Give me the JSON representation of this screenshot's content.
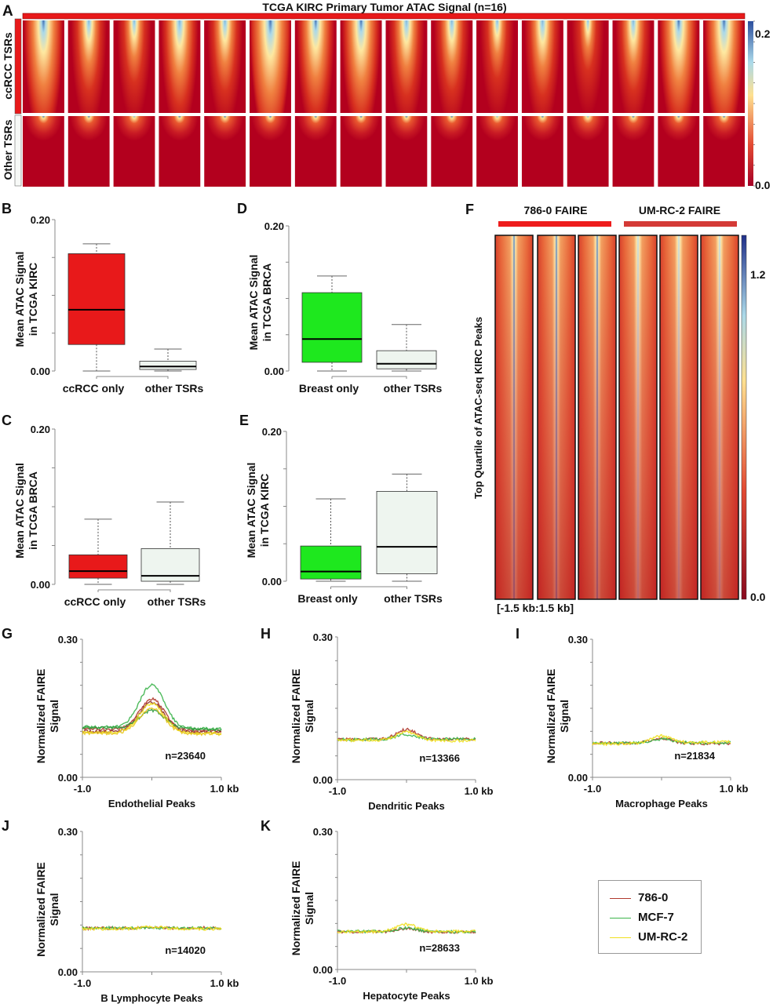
{
  "colors": {
    "red_bar": "#e8191a",
    "ccrcc_box": "#e8191a",
    "breast_box": "#1ee81e",
    "other_box": "#eef5ef",
    "axis_gray": "#888888",
    "line_786": "#b03a2e",
    "line_mcf7": "#3cb44b",
    "line_umrc2": "#f0e020",
    "faire_786_bar": "#ee1c1c",
    "faire_umrc2_bar": "#d43a36",
    "cmap_low": "#a50026",
    "cmap_mid_low": "#e34a33",
    "cmap_mid": "#fee090",
    "cmap_mid_high": "#abd9e9",
    "cmap_high": "#2c4f9e"
  },
  "panels": {
    "A": {
      "letter": "A",
      "title": "TCGA KIRC Primary Tumor ATAC Signal (n=16)",
      "row_labels": [
        "ccRCC TSRs",
        "Other TSRs"
      ],
      "n_samples": 16,
      "colorbar": {
        "min_label": "0.0",
        "max_label": "0.2"
      },
      "sample_intensity": [
        0.85,
        0.55,
        0.45,
        0.7,
        0.55,
        0.95,
        0.75,
        0.8,
        0.6,
        0.55,
        0.4,
        0.6,
        0.3,
        0.55,
        0.8,
        0.85
      ]
    },
    "F": {
      "letter": "F",
      "groups": [
        "786-0 FAIRE",
        "UM-RC-2 FAIRE"
      ],
      "ylabel": "Top Quartile of ATAC-seq KIRC Peaks",
      "xlabel": "[-1.5 kb:1.5 kb]",
      "n_panels": 6,
      "colorbar": {
        "min_label": "0.0",
        "max_label": "1.2"
      },
      "panel_intensity": [
        0.95,
        1.0,
        0.75,
        0.55,
        0.5,
        0.55
      ]
    },
    "legend": {
      "items": [
        {
          "label": "786-0",
          "color": "#b03a2e"
        },
        {
          "label": "MCF-7",
          "color": "#3cb44b"
        },
        {
          "label": "UM-RC-2",
          "color": "#f0e020"
        }
      ]
    }
  },
  "chart_data": [
    {
      "id": "A",
      "type": "heatmap",
      "title": "TCGA KIRC Primary Tumor ATAC Signal (n=16)",
      "rows": [
        "ccRCC TSRs",
        "Other TSRs"
      ],
      "columns": 16,
      "colorbar_range": [
        0.0,
        0.2
      ]
    },
    {
      "id": "B",
      "type": "box",
      "letter": "B",
      "ylabel": [
        "Mean ATAC Signal",
        "in TCGA KIRC"
      ],
      "ylim": [
        0.0,
        0.2
      ],
      "ytick_labels": [
        "0.00",
        "0.20"
      ],
      "categories": [
        "ccRCC only",
        "other TSRs"
      ],
      "boxes": [
        {
          "label": "ccRCC only",
          "whisker_low": 0.0,
          "q1": 0.035,
          "median": 0.081,
          "q3": 0.155,
          "whisker_high": 0.168,
          "fill": "#e8191a"
        },
        {
          "label": "other TSRs",
          "whisker_low": 0.0,
          "q1": 0.002,
          "median": 0.006,
          "q3": 0.013,
          "whisker_high": 0.029,
          "fill": "#eef5ef"
        }
      ]
    },
    {
      "id": "C",
      "type": "box",
      "letter": "C",
      "ylabel": [
        "Mean ATAC Signal",
        "in TCGA BRCA"
      ],
      "ylim": [
        0.0,
        0.2
      ],
      "ytick_labels": [
        "0.00",
        "0.20"
      ],
      "categories": [
        "ccRCC only",
        "other TSRs"
      ],
      "boxes": [
        {
          "label": "ccRCC only",
          "whisker_low": 0.0,
          "q1": 0.008,
          "median": 0.017,
          "q3": 0.038,
          "whisker_high": 0.084,
          "fill": "#e8191a"
        },
        {
          "label": "other TSRs",
          "whisker_low": 0.0,
          "q1": 0.004,
          "median": 0.011,
          "q3": 0.046,
          "whisker_high": 0.106,
          "fill": "#eef5ef"
        }
      ]
    },
    {
      "id": "D",
      "type": "box",
      "letter": "D",
      "ylabel": [
        "Mean ATAC Signal",
        "in TCGA BRCA"
      ],
      "ylim": [
        0.0,
        0.2
      ],
      "ytick_labels": [
        "0.00",
        "0.20"
      ],
      "categories": [
        "Breast only",
        "other TSRs"
      ],
      "boxes": [
        {
          "label": "Breast only",
          "whisker_low": 0.0,
          "q1": 0.012,
          "median": 0.044,
          "q3": 0.108,
          "whisker_high": 0.131,
          "fill": "#1ee81e"
        },
        {
          "label": "other TSRs",
          "whisker_low": 0.0,
          "q1": 0.003,
          "median": 0.01,
          "q3": 0.028,
          "whisker_high": 0.064,
          "fill": "#eef5ef"
        }
      ]
    },
    {
      "id": "E",
      "type": "box",
      "letter": "E",
      "ylabel": [
        "Mean ATAC Signal",
        "in TCGA KIRC"
      ],
      "ylim": [
        0.0,
        0.2
      ],
      "ytick_labels": [
        "0.00",
        "0.20"
      ],
      "categories": [
        "Breast only",
        "other TSRs"
      ],
      "boxes": [
        {
          "label": "Breast only",
          "whisker_low": 0.0,
          "q1": 0.003,
          "median": 0.013,
          "q3": 0.047,
          "whisker_high": 0.11,
          "fill": "#1ee81e"
        },
        {
          "label": "other TSRs",
          "whisker_low": 0.0,
          "q1": 0.01,
          "median": 0.046,
          "q3": 0.12,
          "whisker_high": 0.143,
          "fill": "#eef5ef"
        }
      ]
    },
    {
      "id": "F",
      "type": "heatmap",
      "groups": [
        "786-0 FAIRE",
        "UM-RC-2 FAIRE"
      ],
      "ylabel": "Top Quartile of ATAC-seq KIRC Peaks",
      "xlabel": "[-1.5 kb:1.5 kb]",
      "colorbar_range": [
        0.0,
        1.2
      ]
    },
    {
      "id": "G",
      "type": "line",
      "letter": "G",
      "ylabel": [
        "Normalized FAIRE",
        "Signal"
      ],
      "xlabel": "Endothelial Peaks",
      "xtick_labels": [
        "-1.0",
        "1.0 kb"
      ],
      "xlim": [
        -1.0,
        1.0
      ],
      "ylim": [
        0.0,
        0.3
      ],
      "ytick_labels": [
        "0.00",
        "0.30"
      ],
      "annotation": "n=23640",
      "series": [
        {
          "name": "786-0",
          "color": "#b03a2e",
          "baseline_left": 0.105,
          "baseline_right": 0.1,
          "peak": 0.17
        },
        {
          "name": "786-0",
          "color": "#8e2a26",
          "baseline_left": 0.1,
          "baseline_right": 0.098,
          "peak": 0.163
        },
        {
          "name": "MCF-7",
          "color": "#3cb44b",
          "baseline_left": 0.11,
          "baseline_right": 0.105,
          "peak": 0.2
        },
        {
          "name": "MCF-7",
          "color": "#2e9a3a",
          "baseline_left": 0.108,
          "baseline_right": 0.104,
          "peak": 0.145
        },
        {
          "name": "UM-RC-2",
          "color": "#f0e020",
          "baseline_left": 0.098,
          "baseline_right": 0.095,
          "peak": 0.16
        },
        {
          "name": "UM-RC-2",
          "color": "#e8c820",
          "baseline_left": 0.096,
          "baseline_right": 0.094,
          "peak": 0.15
        }
      ]
    },
    {
      "id": "H",
      "type": "line",
      "letter": "H",
      "ylabel": [
        "Normalized FAIRE",
        "Signal"
      ],
      "xlabel": "Dendritic Peaks",
      "xtick_labels": [
        "-1.0",
        "1.0 kb"
      ],
      "xlim": [
        -1.0,
        1.0
      ],
      "ylim": [
        0.0,
        0.3
      ],
      "ytick_labels": [
        "0.00",
        "0.30"
      ],
      "annotation": "n=13366",
      "series": [
        {
          "name": "786-0",
          "color": "#b03a2e",
          "baseline_left": 0.085,
          "baseline_right": 0.085,
          "peak": 0.105
        },
        {
          "name": "MCF-7",
          "color": "#3cb44b",
          "baseline_left": 0.084,
          "baseline_right": 0.086,
          "peak": 0.095
        },
        {
          "name": "UM-RC-2",
          "color": "#f0e020",
          "baseline_left": 0.083,
          "baseline_right": 0.082,
          "peak": 0.1
        }
      ]
    },
    {
      "id": "I",
      "type": "line",
      "letter": "I",
      "ylabel": [
        "Normalized FAIRE",
        "Signal"
      ],
      "xlabel": "Macrophage Peaks",
      "xtick_labels": [
        "-1.0",
        "1.0 kb"
      ],
      "xlim": [
        -1.0,
        1.0
      ],
      "ylim": [
        0.0,
        0.3
      ],
      "ytick_labels": [
        "0.00",
        "0.30"
      ],
      "annotation": "n=21834",
      "series": [
        {
          "name": "786-0",
          "color": "#b03a2e",
          "baseline_left": 0.075,
          "baseline_right": 0.073,
          "peak": 0.085
        },
        {
          "name": "MCF-7",
          "color": "#3cb44b",
          "baseline_left": 0.075,
          "baseline_right": 0.075,
          "peak": 0.083
        },
        {
          "name": "UM-RC-2",
          "color": "#f0e020",
          "baseline_left": 0.072,
          "baseline_right": 0.077,
          "peak": 0.09
        }
      ]
    },
    {
      "id": "J",
      "type": "line",
      "letter": "J",
      "ylabel": [
        "Normalized FAIRE",
        "Signal"
      ],
      "xlabel": "B Lymphocyte Peaks",
      "xtick_labels": [
        "-1.0",
        "1.0 kb"
      ],
      "xlim": [
        -1.0,
        1.0
      ],
      "ylim": [
        0.0,
        0.3
      ],
      "ytick_labels": [
        "0.00",
        "0.30"
      ],
      "annotation": "n=14020",
      "series": [
        {
          "name": "786-0",
          "color": "#b03a2e",
          "baseline_left": 0.093,
          "baseline_right": 0.094,
          "peak": 0.095
        },
        {
          "name": "MCF-7",
          "color": "#3cb44b",
          "baseline_left": 0.094,
          "baseline_right": 0.093,
          "peak": 0.094
        },
        {
          "name": "UM-RC-2",
          "color": "#f0e020",
          "baseline_left": 0.092,
          "baseline_right": 0.092,
          "peak": 0.096
        }
      ]
    },
    {
      "id": "K",
      "type": "line",
      "letter": "K",
      "ylabel": [
        "Normalized FAIRE",
        "Signal"
      ],
      "xlabel": "Hepatocyte Peaks",
      "xtick_labels": [
        "-1.0",
        "1.0 kb"
      ],
      "xlim": [
        -1.0,
        1.0
      ],
      "ylim": [
        0.0,
        0.3
      ],
      "ytick_labels": [
        "0.00",
        "0.30"
      ],
      "annotation": "n=28633",
      "series": [
        {
          "name": "786-0",
          "color": "#b03a2e",
          "baseline_left": 0.082,
          "baseline_right": 0.081,
          "peak": 0.088
        },
        {
          "name": "MCF-7",
          "color": "#3cb44b",
          "baseline_left": 0.083,
          "baseline_right": 0.082,
          "peak": 0.09
        },
        {
          "name": "UM-RC-2",
          "color": "#f0e020",
          "baseline_left": 0.082,
          "baseline_right": 0.083,
          "peak": 0.098
        }
      ]
    }
  ]
}
